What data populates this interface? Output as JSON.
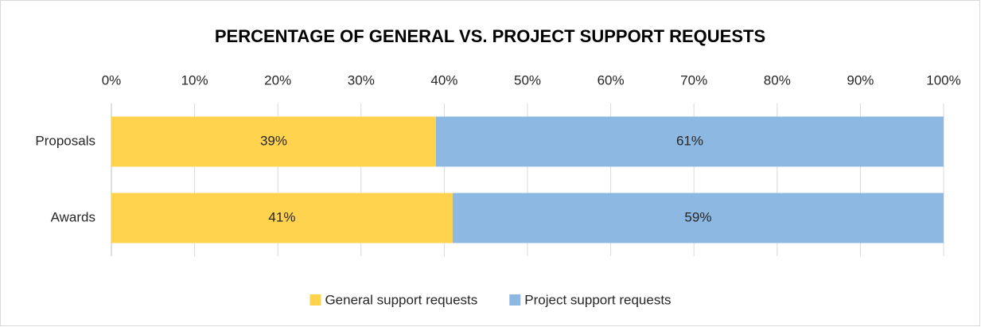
{
  "chart_data": {
    "type": "stacked-barh",
    "title": "PERCENTAGE OF GENERAL VS. PROJECT SUPPORT REQUESTS",
    "categories": [
      "Proposals",
      "Awards"
    ],
    "series": [
      {
        "name": "General support requests",
        "color": "#FFD34E",
        "values": [
          39,
          41
        ],
        "value_labels": [
          "39%",
          "41%"
        ]
      },
      {
        "name": "Project support requests",
        "color": "#8DB8E2",
        "values": [
          61,
          59
        ],
        "value_labels": [
          "61%",
          "59%"
        ]
      }
    ],
    "xlim": [
      0,
      100
    ],
    "xticks": [
      {
        "value": 0,
        "label": "0%"
      },
      {
        "value": 10,
        "label": "10%"
      },
      {
        "value": 20,
        "label": "20%"
      },
      {
        "value": 30,
        "label": "30%"
      },
      {
        "value": 40,
        "label": "40%"
      },
      {
        "value": 50,
        "label": "50%"
      },
      {
        "value": 60,
        "label": "60%"
      },
      {
        "value": 70,
        "label": "70%"
      },
      {
        "value": 80,
        "label": "80%"
      },
      {
        "value": 90,
        "label": "90%"
      },
      {
        "value": 100,
        "label": "100%"
      }
    ],
    "grid": true,
    "legend": "bottom"
  }
}
